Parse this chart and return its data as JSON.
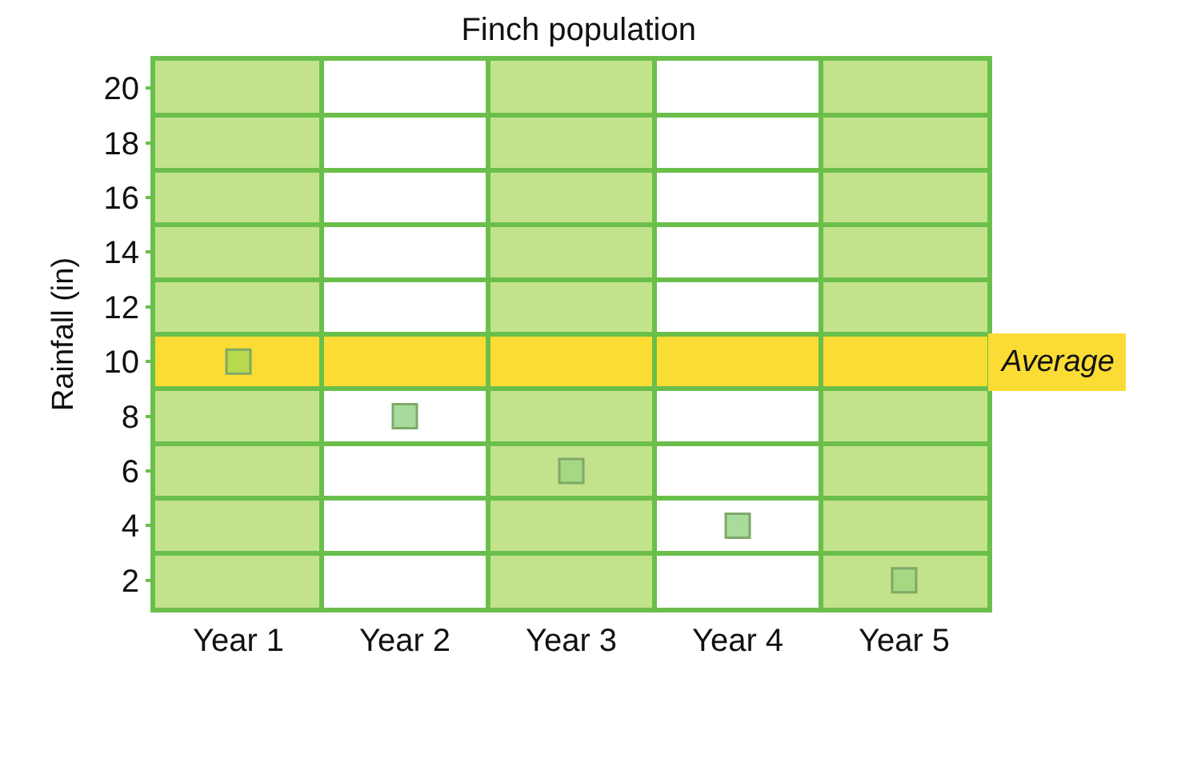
{
  "chart_data": {
    "type": "scatter",
    "title": "Finch population",
    "ylabel": "Rainfall (in)",
    "categories": [
      "Year 1",
      "Year 2",
      "Year 3",
      "Year 4",
      "Year 5"
    ],
    "values": [
      10,
      8,
      6,
      4,
      2
    ],
    "colors": [
      "#b8d84e",
      "#a8dc9c",
      "#a4d882",
      "#a8dc9c",
      "#a4d882"
    ],
    "marker": "square",
    "ylim": [
      1,
      21
    ],
    "yticks": [
      {
        "value": 1,
        "label": null
      },
      2,
      {
        "value": 3,
        "label": null
      },
      4,
      {
        "value": 5,
        "label": null
      },
      6,
      {
        "value": 7,
        "label": null
      },
      8,
      {
        "value": 9,
        "label": null
      },
      10,
      {
        "value": 11,
        "label": null
      },
      12,
      {
        "value": 13,
        "label": null
      },
      14,
      {
        "value": 15,
        "label": null
      },
      16,
      {
        "value": 17,
        "label": null
      },
      18,
      {
        "value": 19,
        "label": null
      },
      20,
      {
        "value": 21,
        "label": null
      }
    ],
    "grid": true,
    "bands": [
      {
        "axis": "x",
        "from": "Year 1",
        "to": "Year 1",
        "color": "#c3e28c"
      },
      {
        "axis": "x",
        "from": "Year 3",
        "to": "Year 3",
        "color": "#c3e28c"
      },
      {
        "axis": "x",
        "from": "Year 5",
        "to": "Year 5",
        "color": "#c3e28c"
      },
      {
        "axis": "y",
        "from": 9,
        "to": 11,
        "label": "Average",
        "color": "#fbdc35"
      }
    ]
  }
}
